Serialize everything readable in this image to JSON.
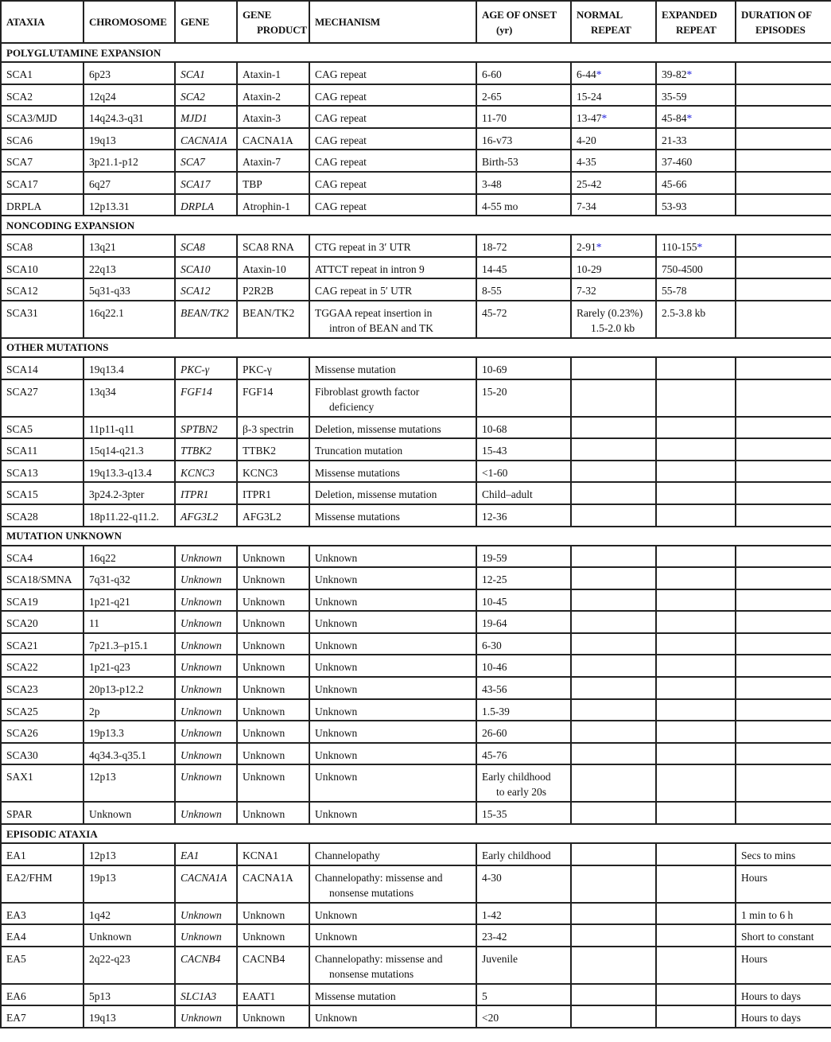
{
  "columns": [
    "ATAXIA",
    "CHROMOSOME",
    "GENE",
    "GENE\nPRODUCT",
    "MECHANISM",
    "AGE OF ONSET\n(yr)",
    "NORMAL\nREPEAT",
    "EXPANDED\nREPEAT",
    "DURATION OF\nEPISODES"
  ],
  "sections": [
    {
      "title": "POLYGLUTAMINE EXPANSION",
      "rows": [
        [
          "SCA1",
          "6p23",
          "SCA1",
          "Ataxin-1",
          "CAG repeat",
          "6-60",
          "6-44*",
          "39-82*",
          ""
        ],
        [
          "SCA2",
          "12q24",
          "SCA2",
          "Ataxin-2",
          "CAG repeat",
          "2-65",
          "15-24",
          "35-59",
          ""
        ],
        [
          "SCA3/MJD",
          "14q24.3-q31",
          "MJD1",
          "Ataxin-3",
          "CAG repeat",
          "11-70",
          "13-47*",
          "45-84*",
          ""
        ],
        [
          "SCA6",
          "19q13",
          "CACNA1A",
          "CACNA1A",
          "CAG repeat",
          "16-v73",
          "4-20",
          "21-33",
          ""
        ],
        [
          "SCA7",
          "3p21.1-p12",
          "SCA7",
          "Ataxin-7",
          "CAG repeat",
          "Birth-53",
          "4-35",
          "37-460",
          ""
        ],
        [
          "SCA17",
          "6q27",
          "SCA17",
          "TBP",
          "CAG repeat",
          "3-48",
          "25-42",
          "45-66",
          ""
        ],
        [
          "DRPLA",
          "12p13.31",
          "DRPLA",
          "Atrophin-1",
          "CAG repeat",
          "4-55 mo",
          "7-34",
          "53-93",
          ""
        ]
      ]
    },
    {
      "title": "NONCODING EXPANSION",
      "rows": [
        [
          "SCA8",
          "13q21",
          "SCA8",
          "SCA8 RNA",
          "CTG repeat in 3′ UTR",
          "18-72",
          "2-91*",
          "110-155*",
          ""
        ],
        [
          "SCA10",
          "22q13",
          "SCA10",
          "Ataxin-10",
          "ATTCT repeat in intron 9",
          "14-45",
          "10-29",
          "750-4500",
          ""
        ],
        [
          "SCA12",
          "5q31-q33",
          "SCA12",
          "P2R2B",
          "CAG repeat in 5′ UTR",
          "8-55",
          "7-32",
          "55-78",
          ""
        ],
        [
          "SCA31",
          "16q22.1",
          "BEAN/TK2",
          "BEAN/TK2",
          "TGGAA repeat insertion in\nintron of BEAN and TK",
          "45-72",
          "Rarely (0.23%)\n1.5-2.0 kb",
          "2.5-3.8 kb",
          ""
        ]
      ]
    },
    {
      "title": "OTHER MUTATIONS",
      "rows": [
        [
          "SCA14",
          "19q13.4",
          "PKC-γ",
          "PKC-γ",
          "Missense mutation",
          "10-69",
          "",
          "",
          ""
        ],
        [
          "SCA27",
          "13q34",
          "FGF14",
          "FGF14",
          "Fibroblast growth factor\ndeficiency",
          "15-20",
          "",
          "",
          ""
        ],
        [
          "SCA5",
          "11p11-q11",
          "SPTBN2",
          "β-3 spectrin",
          "Deletion, missense mutations",
          "10-68",
          "",
          "",
          ""
        ],
        [
          "SCA11",
          "15q14-q21.3",
          "TTBK2",
          "TTBK2",
          "Truncation mutation",
          "15-43",
          "",
          "",
          ""
        ],
        [
          "SCA13",
          "19q13.3-q13.4",
          "KCNC3",
          "KCNC3",
          "Missense mutations",
          "<1-60",
          "",
          "",
          ""
        ],
        [
          "SCA15",
          "3p24.2-3pter",
          "ITPR1",
          "ITPR1",
          "Deletion, missense mutation",
          "Child–adult",
          "",
          "",
          ""
        ],
        [
          "SCA28",
          "18p11.22-q11.2.",
          "AFG3L2",
          "AFG3L2",
          "Missense mutations",
          "12-36",
          "",
          "",
          ""
        ]
      ]
    },
    {
      "title": "MUTATION UNKNOWN",
      "rows": [
        [
          "SCA4",
          "16q22",
          "Unknown",
          "Unknown",
          "Unknown",
          "19-59",
          "",
          "",
          ""
        ],
        [
          "SCA18/SMNA",
          "7q31-q32",
          "Unknown",
          "Unknown",
          "Unknown",
          "12-25",
          "",
          "",
          ""
        ],
        [
          "SCA19",
          "1p21-q21",
          "Unknown",
          "Unknown",
          "Unknown",
          "10-45",
          "",
          "",
          ""
        ],
        [
          "SCA20",
          "11",
          "Unknown",
          "Unknown",
          "Unknown",
          "19-64",
          "",
          "",
          ""
        ],
        [
          "SCA21",
          "7p21.3–p15.1",
          "Unknown",
          "Unknown",
          "Unknown",
          "6-30",
          "",
          "",
          ""
        ],
        [
          "SCA22",
          "1p21-q23",
          "Unknown",
          "Unknown",
          "Unknown",
          "10-46",
          "",
          "",
          ""
        ],
        [
          "SCA23",
          "20p13-p12.2",
          "Unknown",
          "Unknown",
          "Unknown",
          "43-56",
          "",
          "",
          ""
        ],
        [
          "SCA25",
          "2p",
          "Unknown",
          "Unknown",
          "Unknown",
          "1.5-39",
          "",
          "",
          ""
        ],
        [
          "SCA26",
          "19p13.3",
          "Unknown",
          "Unknown",
          "Unknown",
          "26-60",
          "",
          "",
          ""
        ],
        [
          "SCA30",
          "4q34.3-q35.1",
          "Unknown",
          "Unknown",
          "Unknown",
          "45-76",
          "",
          "",
          ""
        ],
        [
          "SAX1",
          "12p13",
          "Unknown",
          "Unknown",
          "Unknown",
          "Early childhood\nto early 20s",
          "",
          "",
          ""
        ],
        [
          "SPAR",
          "Unknown",
          "Unknown",
          "Unknown",
          "Unknown",
          "15-35",
          "",
          "",
          ""
        ]
      ]
    },
    {
      "title": "EPISODIC ATAXIA",
      "rows": [
        [
          "EA1",
          "12p13",
          "EA1",
          "KCNA1",
          "Channelopathy",
          "Early childhood",
          "",
          "",
          "Secs to mins"
        ],
        [
          "EA2/FHM",
          "19p13",
          "CACNA1A",
          "CACNA1A",
          "Channelopathy: missense and\nnonsense mutations",
          "4-30",
          "",
          "",
          "Hours"
        ],
        [
          "EA3",
          "1q42",
          "Unknown",
          "Unknown",
          "Unknown",
          "1-42",
          "",
          "",
          "1 min to 6 h"
        ],
        [
          "EA4",
          "Unknown",
          "Unknown",
          "Unknown",
          "Unknown",
          "23-42",
          "",
          "",
          "Short to constant"
        ],
        [
          "EA5",
          "2q22-q23",
          "CACNB4",
          "CACNB4",
          "Channelopathy: missense and\nnonsense mutations",
          "Juvenile",
          "",
          "",
          "Hours"
        ],
        [
          "EA6",
          "5p13",
          "SLC1A3",
          "EAAT1",
          "Missense mutation",
          "5",
          "",
          "",
          "Hours to days"
        ],
        [
          "EA7",
          "19q13",
          "Unknown",
          "Unknown",
          "Unknown",
          "<20",
          "",
          "",
          "Hours to days"
        ]
      ]
    }
  ],
  "colors": {
    "asterisk": "#1a1adc",
    "border": "#222222"
  }
}
